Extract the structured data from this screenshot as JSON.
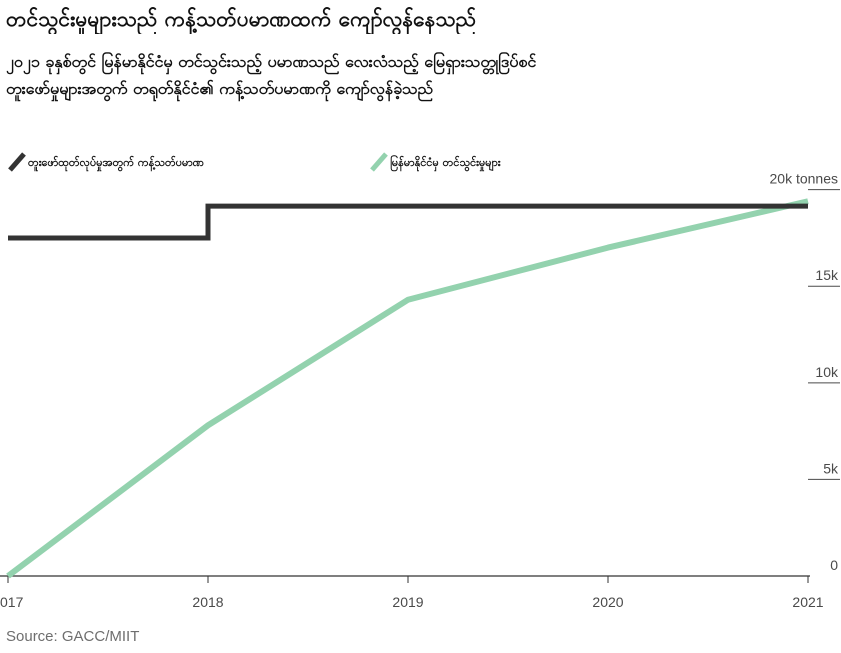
{
  "chart_data": {
    "type": "line",
    "title": "တင်သွင်းမှုများသည် ကန့်သတ်ပမာဏထက် ကျော်လွန်နေသည်",
    "subtitle": [
      "၂၀၂၁ ခုနှစ်တွင် မြန်မာနိုင်ငံမှ တင်သွင်းသည့် ပမာဏသည် လေးလံသည့် မြေရှားသတ္တုဒြပ်စင်",
      "တူးဖော်မှုများအတွက် တရုတ်နိုင်ငံ၏ ကန့်သတ်ပမာဏကို ကျော်လွန်ခဲ့သည်"
    ],
    "xlabel": "",
    "ylabel": "",
    "x_ticks": [
      "017",
      "2018",
      "2019",
      "2020",
      "2021"
    ],
    "y_ticks": [
      "0",
      "5k",
      "10k",
      "15k",
      "20k tonnes"
    ],
    "ylim": [
      0,
      20500
    ],
    "xlim": [
      2017,
      2021
    ],
    "legend_position": "top-left",
    "series": [
      {
        "name": "တူးဖော်ထုတ်လုပ်မှုအတွက် ကန့်သတ်ပမာဏ",
        "color": "#333333",
        "step": true,
        "points": [
          {
            "x": 2017,
            "y": 17500
          },
          {
            "x": 2018,
            "y": 17500
          },
          {
            "x": 2018,
            "y": 19150
          },
          {
            "x": 2021,
            "y": 19150
          }
        ]
      },
      {
        "name": "မြန်မာနိုင်ငံမှ တင်သွင်းမှုများ",
        "color": "#93d2ae",
        "step": false,
        "points": [
          {
            "x": 2017,
            "y": 0
          },
          {
            "x": 2018,
            "y": 7800
          },
          {
            "x": 2019,
            "y": 14300
          },
          {
            "x": 2020,
            "y": 17000
          },
          {
            "x": 2021,
            "y": 19400
          }
        ]
      }
    ],
    "source": "Source: GACC/MIIT"
  }
}
